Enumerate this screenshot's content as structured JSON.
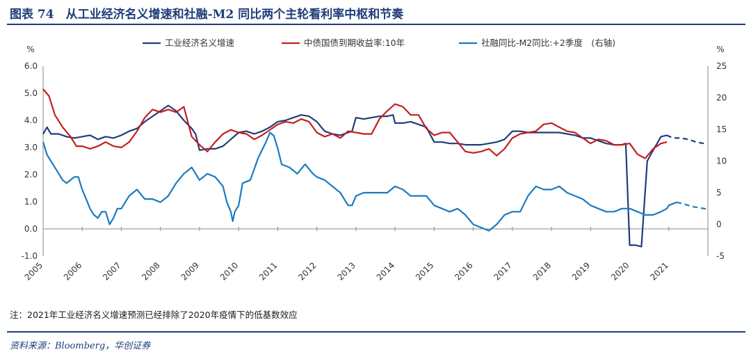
{
  "header": {
    "title": "图表 74　从工业经济名义增速和社融-M2 同比两个主轮看利率中枢和节奏"
  },
  "note": "注：2021年工业经济名义增速预测已经排除了2020年疫情下的低基数效应",
  "source": "资料来源：Bloomberg，华创证券",
  "colors": {
    "navy": "#1f3d7a",
    "red": "#c41e1e",
    "blue": "#1a7abf"
  },
  "chart_data": {
    "type": "line",
    "left_axis": {
      "unit": "%",
      "range": [
        -1.0,
        6.0
      ],
      "ticks": [
        "-1.0",
        "0.0",
        "1.0",
        "2.0",
        "3.0",
        "4.0",
        "5.0",
        "6.0"
      ]
    },
    "right_axis": {
      "unit": "%",
      "range": [
        -5,
        25
      ],
      "ticks": [
        "-5",
        "0",
        "5",
        "10",
        "15",
        "20",
        "25"
      ]
    },
    "x_axis": {
      "ticks": [
        "2005",
        "2006",
        "2007",
        "2008",
        "2009",
        "2010",
        "2011",
        "2012",
        "2013",
        "2014",
        "2015",
        "2016",
        "2017",
        "2018",
        "2019",
        "2020",
        "2021"
      ]
    },
    "legend": {
      "placement": "top"
    },
    "series": [
      {
        "name": "工业经济名义增速",
        "axis": "left",
        "color": "#1f3d7a",
        "points": [
          [
            2005.0,
            3.5
          ],
          [
            2005.1,
            3.75
          ],
          [
            2005.2,
            3.5
          ],
          [
            2005.4,
            3.5
          ],
          [
            2005.6,
            3.4
          ],
          [
            2005.8,
            3.35
          ],
          [
            2006.0,
            3.4
          ],
          [
            2006.2,
            3.45
          ],
          [
            2006.4,
            3.3
          ],
          [
            2006.6,
            3.4
          ],
          [
            2006.8,
            3.35
          ],
          [
            2007.0,
            3.45
          ],
          [
            2007.2,
            3.6
          ],
          [
            2007.4,
            3.7
          ],
          [
            2007.6,
            3.95
          ],
          [
            2007.8,
            4.15
          ],
          [
            2008.0,
            4.35
          ],
          [
            2008.2,
            4.55
          ],
          [
            2008.4,
            4.35
          ],
          [
            2008.6,
            4.0
          ],
          [
            2008.8,
            3.7
          ],
          [
            2008.9,
            3.5
          ],
          [
            2009.0,
            2.9
          ],
          [
            2009.2,
            2.95
          ],
          [
            2009.4,
            2.95
          ],
          [
            2009.6,
            3.05
          ],
          [
            2009.8,
            3.3
          ],
          [
            2010.0,
            3.55
          ],
          [
            2010.2,
            3.6
          ],
          [
            2010.4,
            3.5
          ],
          [
            2010.6,
            3.6
          ],
          [
            2010.8,
            3.75
          ],
          [
            2011.0,
            3.95
          ],
          [
            2011.2,
            4.0
          ],
          [
            2011.4,
            4.1
          ],
          [
            2011.6,
            4.2
          ],
          [
            2011.8,
            4.15
          ],
          [
            2012.0,
            3.95
          ],
          [
            2012.2,
            3.6
          ],
          [
            2012.4,
            3.5
          ],
          [
            2012.6,
            3.45
          ],
          [
            2012.8,
            3.55
          ],
          [
            2012.9,
            3.6
          ],
          [
            2013.0,
            4.1
          ],
          [
            2013.2,
            4.05
          ],
          [
            2013.4,
            4.1
          ],
          [
            2013.6,
            4.15
          ],
          [
            2013.8,
            4.15
          ],
          [
            2013.95,
            4.2
          ],
          [
            2014.0,
            3.9
          ],
          [
            2014.2,
            3.9
          ],
          [
            2014.4,
            3.95
          ],
          [
            2014.6,
            3.85
          ],
          [
            2014.8,
            3.75
          ],
          [
            2015.0,
            3.2
          ],
          [
            2015.2,
            3.2
          ],
          [
            2015.4,
            3.15
          ],
          [
            2015.6,
            3.15
          ],
          [
            2015.8,
            3.1
          ],
          [
            2016.0,
            3.1
          ],
          [
            2016.2,
            3.1
          ],
          [
            2016.4,
            3.15
          ],
          [
            2016.6,
            3.2
          ],
          [
            2016.8,
            3.3
          ],
          [
            2017.0,
            3.6
          ],
          [
            2017.2,
            3.6
          ],
          [
            2017.4,
            3.55
          ],
          [
            2017.6,
            3.55
          ],
          [
            2017.8,
            3.55
          ],
          [
            2018.0,
            3.55
          ],
          [
            2018.2,
            3.55
          ],
          [
            2018.4,
            3.5
          ],
          [
            2018.6,
            3.45
          ],
          [
            2018.8,
            3.35
          ],
          [
            2019.0,
            3.35
          ],
          [
            2019.2,
            3.25
          ],
          [
            2019.4,
            3.15
          ],
          [
            2019.6,
            3.1
          ],
          [
            2019.8,
            3.1
          ],
          [
            2019.9,
            3.15
          ],
          [
            2020.0,
            -0.6
          ],
          [
            2020.15,
            -0.6
          ],
          [
            2020.3,
            -0.65
          ],
          [
            2020.45,
            2.5
          ],
          [
            2020.6,
            2.9
          ],
          [
            2020.8,
            3.4
          ],
          [
            2020.95,
            3.45
          ]
        ],
        "forecast_points": [
          [
            2020.95,
            3.45
          ],
          [
            2021.1,
            3.35
          ],
          [
            2021.3,
            3.35
          ],
          [
            2021.5,
            3.3
          ],
          [
            2021.7,
            3.2
          ],
          [
            2021.9,
            3.15
          ]
        ]
      },
      {
        "name": "中债国债到期收益率:10年",
        "axis": "left",
        "color": "#c41e1e",
        "points": [
          [
            2005.0,
            5.15
          ],
          [
            2005.15,
            4.9
          ],
          [
            2005.3,
            4.2
          ],
          [
            2005.5,
            3.75
          ],
          [
            2005.7,
            3.4
          ],
          [
            2005.85,
            3.05
          ],
          [
            2006.0,
            3.05
          ],
          [
            2006.2,
            2.95
          ],
          [
            2006.4,
            3.05
          ],
          [
            2006.6,
            3.2
          ],
          [
            2006.8,
            3.05
          ],
          [
            2007.0,
            3.0
          ],
          [
            2007.2,
            3.2
          ],
          [
            2007.4,
            3.6
          ],
          [
            2007.6,
            4.1
          ],
          [
            2007.8,
            4.4
          ],
          [
            2008.0,
            4.3
          ],
          [
            2008.2,
            4.4
          ],
          [
            2008.4,
            4.3
          ],
          [
            2008.6,
            4.5
          ],
          [
            2008.8,
            3.4
          ],
          [
            2009.0,
            3.1
          ],
          [
            2009.2,
            2.85
          ],
          [
            2009.4,
            3.2
          ],
          [
            2009.6,
            3.5
          ],
          [
            2009.8,
            3.65
          ],
          [
            2010.0,
            3.55
          ],
          [
            2010.2,
            3.5
          ],
          [
            2010.4,
            3.3
          ],
          [
            2010.6,
            3.45
          ],
          [
            2010.8,
            3.65
          ],
          [
            2011.0,
            3.85
          ],
          [
            2011.2,
            3.95
          ],
          [
            2011.4,
            3.9
          ],
          [
            2011.6,
            4.05
          ],
          [
            2011.8,
            3.95
          ],
          [
            2012.0,
            3.55
          ],
          [
            2012.2,
            3.4
          ],
          [
            2012.4,
            3.5
          ],
          [
            2012.6,
            3.35
          ],
          [
            2012.8,
            3.6
          ],
          [
            2013.0,
            3.55
          ],
          [
            2013.2,
            3.5
          ],
          [
            2013.4,
            3.5
          ],
          [
            2013.6,
            4.05
          ],
          [
            2013.8,
            4.35
          ],
          [
            2014.0,
            4.6
          ],
          [
            2014.2,
            4.5
          ],
          [
            2014.4,
            4.2
          ],
          [
            2014.6,
            4.2
          ],
          [
            2014.8,
            3.7
          ],
          [
            2015.0,
            3.45
          ],
          [
            2015.2,
            3.55
          ],
          [
            2015.4,
            3.55
          ],
          [
            2015.6,
            3.2
          ],
          [
            2015.8,
            2.85
          ],
          [
            2016.0,
            2.8
          ],
          [
            2016.2,
            2.85
          ],
          [
            2016.4,
            2.95
          ],
          [
            2016.6,
            2.7
          ],
          [
            2016.8,
            2.95
          ],
          [
            2017.0,
            3.35
          ],
          [
            2017.2,
            3.5
          ],
          [
            2017.4,
            3.55
          ],
          [
            2017.6,
            3.6
          ],
          [
            2017.8,
            3.85
          ],
          [
            2018.0,
            3.9
          ],
          [
            2018.2,
            3.75
          ],
          [
            2018.4,
            3.6
          ],
          [
            2018.6,
            3.55
          ],
          [
            2018.8,
            3.35
          ],
          [
            2019.0,
            3.15
          ],
          [
            2019.2,
            3.3
          ],
          [
            2019.4,
            3.25
          ],
          [
            2019.6,
            3.1
          ],
          [
            2019.8,
            3.1
          ],
          [
            2020.0,
            3.15
          ],
          [
            2020.2,
            2.75
          ],
          [
            2020.4,
            2.6
          ],
          [
            2020.6,
            2.95
          ],
          [
            2020.8,
            3.15
          ],
          [
            2020.95,
            3.2
          ]
        ]
      },
      {
        "name": "社融同比-M2同比:+2季度　(右轴)",
        "axis": "right",
        "color": "#1a7abf",
        "points": [
          [
            2005.0,
            13
          ],
          [
            2005.1,
            11
          ],
          [
            2005.2,
            10
          ],
          [
            2005.3,
            9
          ],
          [
            2005.4,
            8
          ],
          [
            2005.5,
            7
          ],
          [
            2005.6,
            6.5
          ],
          [
            2005.7,
            7
          ],
          [
            2005.8,
            7.5
          ],
          [
            2005.9,
            7.5
          ],
          [
            2006.0,
            5.5
          ],
          [
            2006.1,
            4
          ],
          [
            2006.2,
            2.5
          ],
          [
            2006.3,
            1.5
          ],
          [
            2006.4,
            1
          ],
          [
            2006.5,
            2
          ],
          [
            2006.6,
            2
          ],
          [
            2006.7,
            0
          ],
          [
            2006.8,
            1
          ],
          [
            2006.9,
            2.5
          ],
          [
            2007.0,
            2.5
          ],
          [
            2007.2,
            4.5
          ],
          [
            2007.4,
            5.5
          ],
          [
            2007.6,
            4
          ],
          [
            2007.8,
            4
          ],
          [
            2008.0,
            3.5
          ],
          [
            2008.2,
            4.5
          ],
          [
            2008.4,
            6.5
          ],
          [
            2008.6,
            8
          ],
          [
            2008.8,
            9
          ],
          [
            2009.0,
            7
          ],
          [
            2009.2,
            8
          ],
          [
            2009.4,
            7.5
          ],
          [
            2009.6,
            6
          ],
          [
            2009.7,
            3.5
          ],
          [
            2009.8,
            2
          ],
          [
            2009.85,
            0.5
          ],
          [
            2009.9,
            2
          ],
          [
            2010.0,
            3
          ],
          [
            2010.1,
            6.5
          ],
          [
            2010.3,
            7
          ],
          [
            2010.5,
            10.5
          ],
          [
            2010.7,
            13
          ],
          [
            2010.8,
            14.5
          ],
          [
            2010.9,
            14
          ],
          [
            2011.0,
            12
          ],
          [
            2011.1,
            9.5
          ],
          [
            2011.3,
            9
          ],
          [
            2011.5,
            8
          ],
          [
            2011.7,
            9.5
          ],
          [
            2011.9,
            8
          ],
          [
            2012.0,
            7.5
          ],
          [
            2012.2,
            7
          ],
          [
            2012.4,
            6
          ],
          [
            2012.6,
            5
          ],
          [
            2012.8,
            3
          ],
          [
            2012.9,
            3
          ],
          [
            2013.0,
            4.5
          ],
          [
            2013.2,
            5
          ],
          [
            2013.4,
            5
          ],
          [
            2013.6,
            5
          ],
          [
            2013.8,
            5
          ],
          [
            2014.0,
            6
          ],
          [
            2014.2,
            5.5
          ],
          [
            2014.4,
            4.5
          ],
          [
            2014.6,
            4.5
          ],
          [
            2014.8,
            4.5
          ],
          [
            2015.0,
            3
          ],
          [
            2015.2,
            2.5
          ],
          [
            2015.4,
            2
          ],
          [
            2015.6,
            2.5
          ],
          [
            2015.8,
            1.5
          ],
          [
            2016.0,
            0
          ],
          [
            2016.2,
            -0.5
          ],
          [
            2016.4,
            -1
          ],
          [
            2016.6,
            0
          ],
          [
            2016.8,
            1.5
          ],
          [
            2017.0,
            2
          ],
          [
            2017.2,
            2
          ],
          [
            2017.4,
            4.5
          ],
          [
            2017.6,
            6
          ],
          [
            2017.8,
            5.5
          ],
          [
            2018.0,
            5.5
          ],
          [
            2018.2,
            6
          ],
          [
            2018.4,
            5
          ],
          [
            2018.6,
            4.5
          ],
          [
            2018.8,
            4
          ],
          [
            2019.0,
            3
          ],
          [
            2019.2,
            2.5
          ],
          [
            2019.4,
            2
          ],
          [
            2019.6,
            2
          ],
          [
            2019.8,
            2.5
          ],
          [
            2020.0,
            2.5
          ],
          [
            2020.2,
            2
          ],
          [
            2020.4,
            1.5
          ],
          [
            2020.6,
            1.5
          ],
          [
            2020.8,
            2
          ],
          [
            2020.95,
            2.5
          ],
          [
            2021.0,
            3
          ],
          [
            2021.2,
            3.5
          ]
        ],
        "forecast_points": [
          [
            2021.2,
            3.5
          ],
          [
            2021.4,
            3.2
          ],
          [
            2021.6,
            2.8
          ],
          [
            2021.8,
            2.6
          ],
          [
            2022.0,
            2.4
          ]
        ]
      }
    ]
  }
}
